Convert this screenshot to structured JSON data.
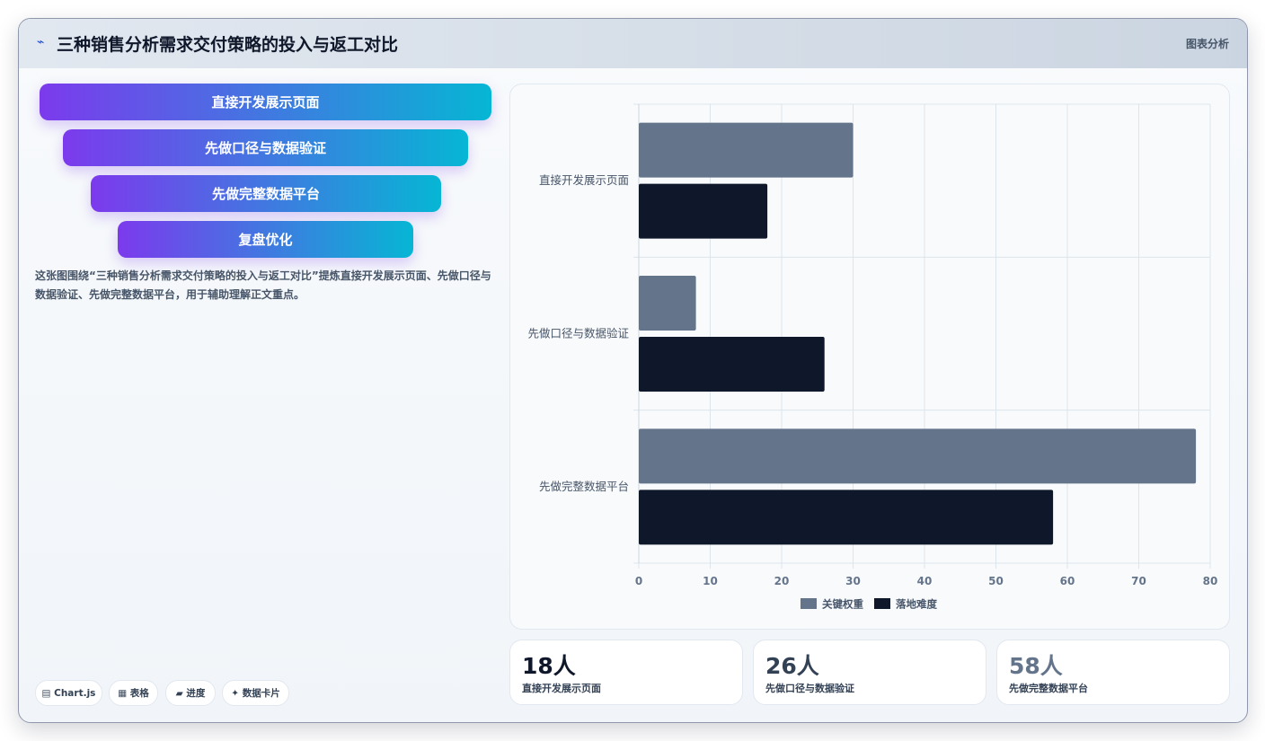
{
  "header": {
    "icon": "chart-line-icon",
    "title": "三种销售分析需求交付策略的投入与返工对比",
    "tag": "图表分析"
  },
  "funnel": [
    "直接开发展示页面",
    "先做口径与数据验证",
    "先做完整数据平台",
    "复盘优化"
  ],
  "description": "这张图围绕“三种销售分析需求交付策略的投入与返工对比”提炼直接开发展示页面、先做口径与数据验证、先做完整数据平台，用于辅助理解正文重点。",
  "chips": [
    "▤ Chart.js",
    "▦ 表格",
    "▰ 进度",
    "✦ 数据卡片"
  ],
  "stats": [
    {
      "value": "18人",
      "label": "直接开发展示页面",
      "color": "#0f172a"
    },
    {
      "value": "26人",
      "label": "先做口径与数据验证",
      "color": "#334155"
    },
    {
      "value": "58人",
      "label": "先做完整数据平台",
      "color": "#64748b"
    }
  ],
  "chart_data": {
    "type": "bar",
    "orientation": "horizontal",
    "categories": [
      "直接开发展示页面",
      "先做口径与数据验证",
      "先做完整数据平台"
    ],
    "series": [
      {
        "name": "关键权重",
        "color": "#64748b",
        "values": [
          30,
          8,
          78
        ]
      },
      {
        "name": "落地难度",
        "color": "#0f172a",
        "values": [
          18,
          26,
          58
        ]
      }
    ],
    "xlim": [
      0,
      80
    ],
    "xticks": [
      0,
      10,
      20,
      30,
      40,
      50,
      60,
      70,
      80
    ],
    "grid": true,
    "legend": "bottom"
  }
}
